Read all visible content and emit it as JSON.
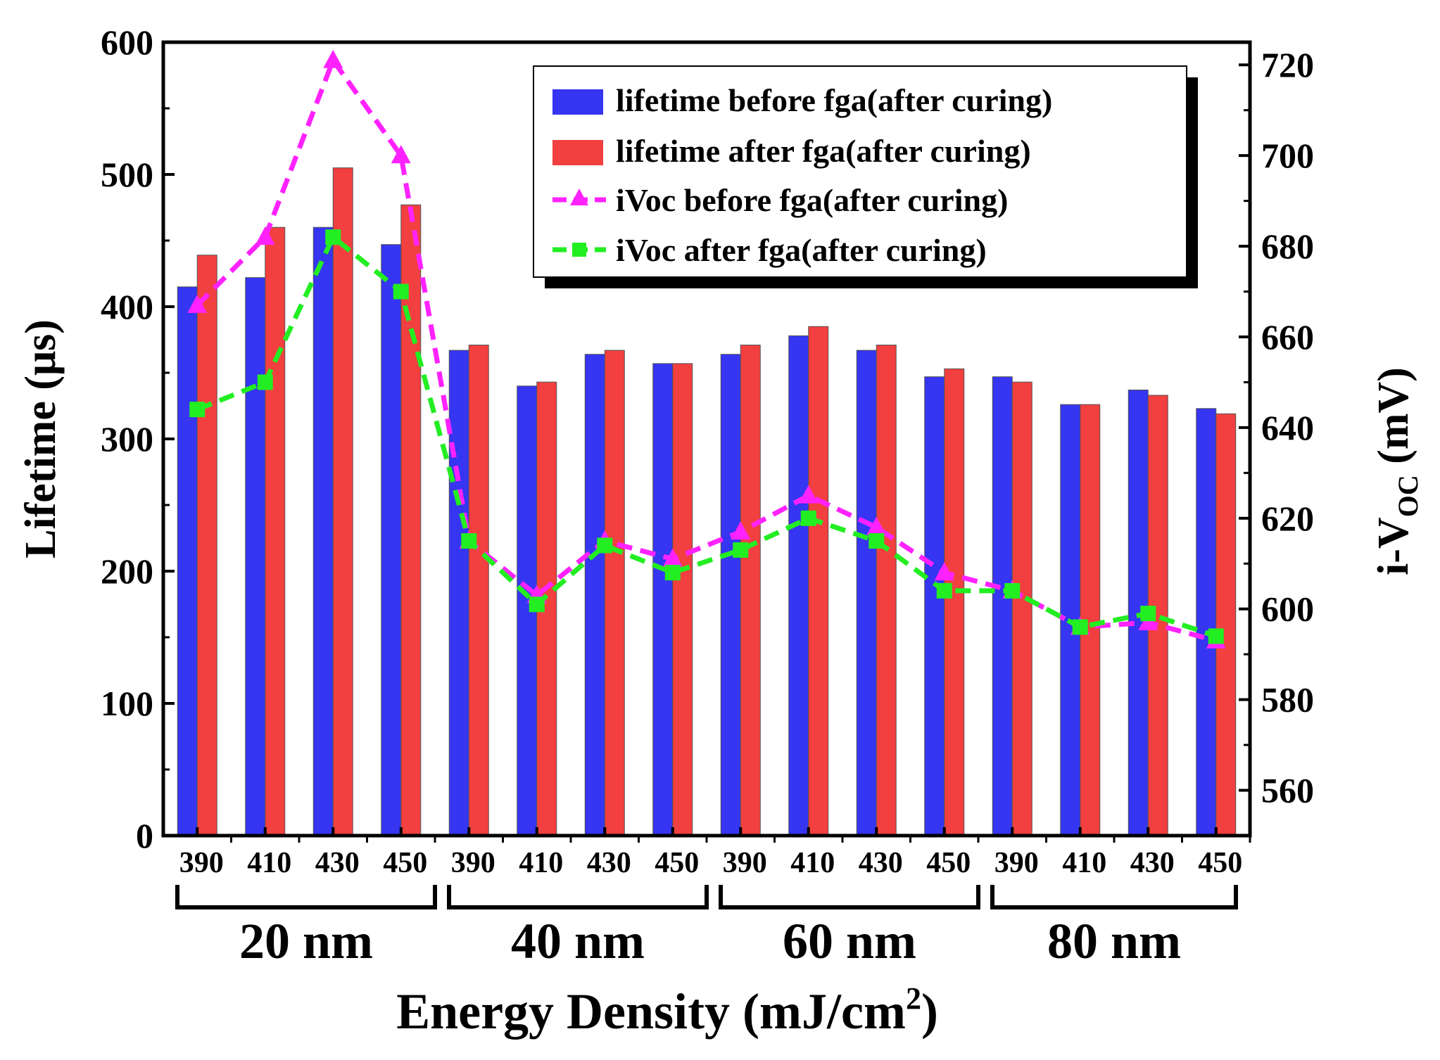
{
  "chart_data": {
    "type": "bar",
    "xlabel": "Energy Density (mJ/cm",
    "xlabel_sup": "2",
    "xlabel_end": ")",
    "ylabel": "Lifetime (μs)",
    "y2label_main": "i-V",
    "y2label_sub": "OC",
    "y2label_end": " (mV)",
    "ylim": [
      0,
      600
    ],
    "y2lim": [
      550,
      725
    ],
    "yticks": [
      "0",
      "100",
      "200",
      "300",
      "400",
      "500",
      "600"
    ],
    "y2ticks": [
      "560",
      "580",
      "600",
      "620",
      "640",
      "660",
      "680",
      "700",
      "720"
    ],
    "categories": [
      "390",
      "410",
      "430",
      "450",
      "390",
      "410",
      "430",
      "450",
      "390",
      "410",
      "430",
      "450",
      "390",
      "410",
      "430",
      "450"
    ],
    "groups": [
      "20 nm",
      "40 nm",
      "60 nm",
      "80 nm"
    ],
    "series": [
      {
        "name": "lifetime before fga(after curing)",
        "kind": "bar",
        "axis": "left",
        "color": "#3535f2",
        "values": [
          415,
          422,
          460,
          447,
          367,
          340,
          364,
          357,
          364,
          378,
          367,
          347,
          347,
          326,
          337,
          323
        ]
      },
      {
        "name": "lifetime after fga(after curing)",
        "kind": "bar",
        "axis": "left",
        "color": "#f23f3f",
        "values": [
          439,
          460,
          505,
          477,
          371,
          343,
          367,
          357,
          371,
          385,
          371,
          353,
          343,
          326,
          333,
          319
        ]
      },
      {
        "name": "iVoc before fga(after curing)",
        "kind": "line",
        "axis": "right",
        "marker": "triangle",
        "color": "#ff22ff",
        "values": [
          667,
          682,
          721,
          700,
          615,
          603,
          615,
          611,
          617,
          625,
          618,
          608,
          604,
          596,
          597,
          593
        ]
      },
      {
        "name": "iVoc after fga(after curing)",
        "kind": "line",
        "axis": "right",
        "marker": "square",
        "color": "#22ee22",
        "values": [
          644,
          650,
          682,
          670,
          615,
          601,
          614,
          608,
          613,
          620,
          615,
          604,
          604,
          596,
          599,
          594
        ]
      }
    ],
    "legend": "top-right",
    "grid": false
  }
}
